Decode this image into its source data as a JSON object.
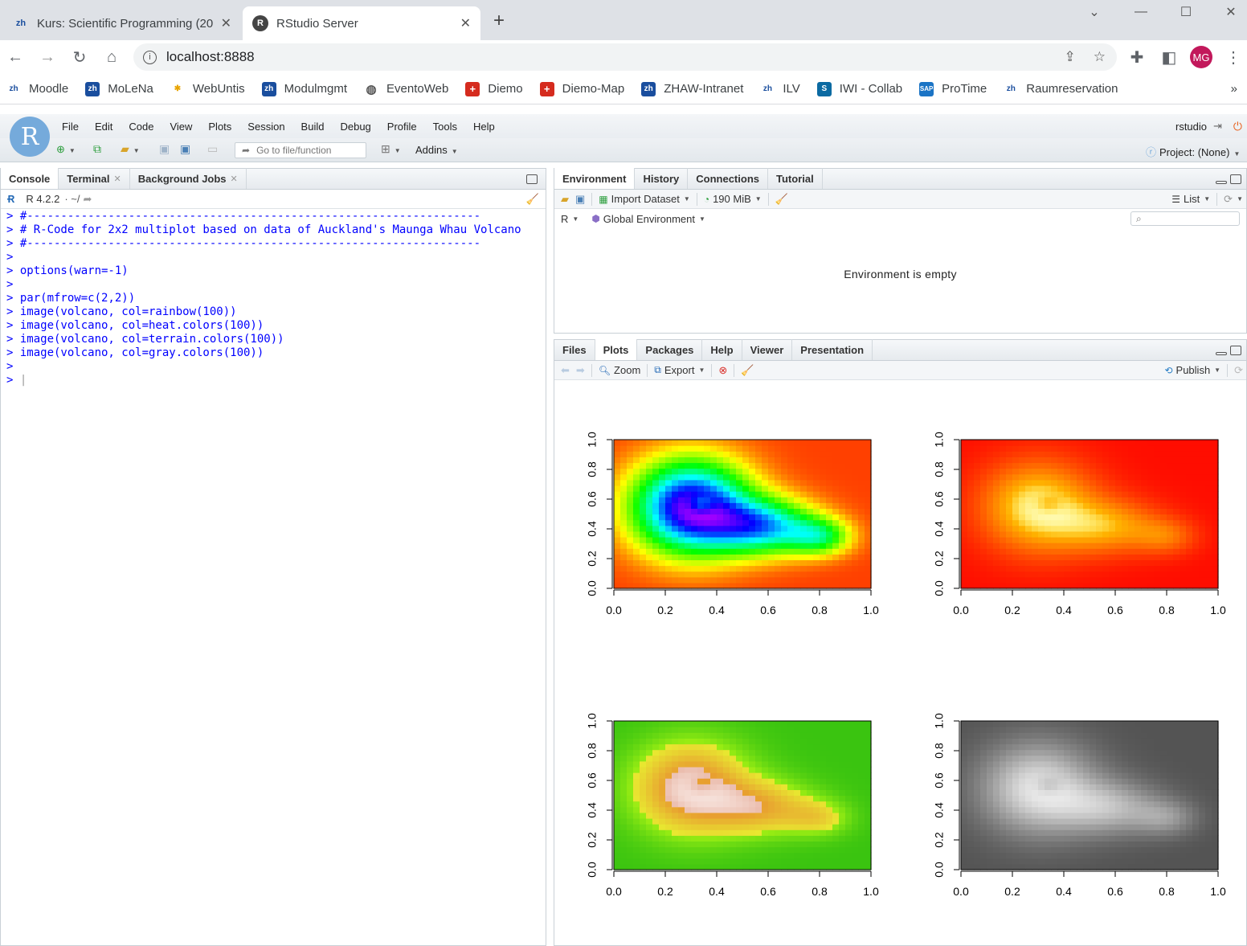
{
  "browser": {
    "tabs": [
      {
        "label": "Kurs: Scientific Programming (20…",
        "icon": "zhaw-icon"
      },
      {
        "label": "RStudio Server",
        "icon": "r-icon"
      }
    ],
    "url": "localhost:8888",
    "bookmarks": [
      "Moodle",
      "MoLeNa",
      "WebUntis",
      "Modulmgmt",
      "EventoWeb",
      "Diemo",
      "Diemo-Map",
      "ZHAW-Intranet",
      "ILV",
      "IWI - Collab",
      "ProTime",
      "Raumreservation"
    ],
    "profile": "MG",
    "more": "»"
  },
  "rstudio": {
    "menu": [
      "File",
      "Edit",
      "Code",
      "View",
      "Plots",
      "Session",
      "Build",
      "Debug",
      "Profile",
      "Tools",
      "Help"
    ],
    "user": "rstudio",
    "goto_placeholder": "Go to file/function",
    "addins": "Addins",
    "project": "Project: (None)"
  },
  "console_pane": {
    "tabs": [
      "Console",
      "Terminal",
      "Background Jobs"
    ],
    "version": "R 4.2.2",
    "path": "· ~/",
    "lines": [
      {
        "p": ">",
        "t": "#-------------------------------------------------------------------"
      },
      {
        "p": ">",
        "t": "# R-Code for 2x2 multiplot based on data of Auckland's Maunga Whau Volcano"
      },
      {
        "p": ">",
        "t": "#-------------------------------------------------------------------"
      },
      {
        "p": ">",
        "t": ""
      },
      {
        "p": ">",
        "t": "options(warn=-1)"
      },
      {
        "p": ">",
        "t": ""
      },
      {
        "p": ">",
        "t": "par(mfrow=c(2,2))"
      },
      {
        "p": ">",
        "t": "image(volcano, col=rainbow(100))"
      },
      {
        "p": ">",
        "t": "image(volcano, col=heat.colors(100))"
      },
      {
        "p": ">",
        "t": "image(volcano, col=terrain.colors(100))"
      },
      {
        "p": ">",
        "t": "image(volcano, col=gray.colors(100))"
      },
      {
        "p": ">",
        "t": ""
      },
      {
        "p": ">",
        "t": ""
      }
    ]
  },
  "env_pane": {
    "tabs": [
      "Environment",
      "History",
      "Connections",
      "Tutorial"
    ],
    "import": "Import Dataset",
    "memory": "190 MiB",
    "list": "List",
    "lang": "R",
    "scope": "Global Environment",
    "empty": "Environment is empty"
  },
  "files_pane": {
    "tabs": [
      "Files",
      "Plots",
      "Packages",
      "Help",
      "Viewer",
      "Presentation"
    ],
    "zoom": "Zoom",
    "export": "Export",
    "publish": "Publish"
  },
  "chart_data": [
    {
      "type": "heatmap",
      "palette": "rainbow",
      "x": [
        0.0,
        0.2,
        0.4,
        0.6,
        0.8,
        1.0
      ],
      "y": [
        0.0,
        0.2,
        0.4,
        0.6,
        0.8,
        1.0
      ],
      "xlim": [
        0,
        1
      ],
      "ylim": [
        0,
        1
      ]
    },
    {
      "type": "heatmap",
      "palette": "heat",
      "x": [
        0.0,
        0.2,
        0.4,
        0.6,
        0.8,
        1.0
      ],
      "y": [
        0.0,
        0.2,
        0.4,
        0.6,
        0.8,
        1.0
      ],
      "xlim": [
        0,
        1
      ],
      "ylim": [
        0,
        1
      ]
    },
    {
      "type": "heatmap",
      "palette": "terrain",
      "x": [
        0.0,
        0.2,
        0.4,
        0.6,
        0.8,
        1.0
      ],
      "y": [
        0.0,
        0.2,
        0.4,
        0.6,
        0.8,
        1.0
      ],
      "xlim": [
        0,
        1
      ],
      "ylim": [
        0,
        1
      ]
    },
    {
      "type": "heatmap",
      "palette": "gray",
      "x": [
        0.0,
        0.2,
        0.4,
        0.6,
        0.8,
        1.0
      ],
      "y": [
        0.0,
        0.2,
        0.4,
        0.6,
        0.8,
        1.0
      ],
      "xlim": [
        0,
        1
      ],
      "ylim": [
        0,
        1
      ]
    }
  ]
}
